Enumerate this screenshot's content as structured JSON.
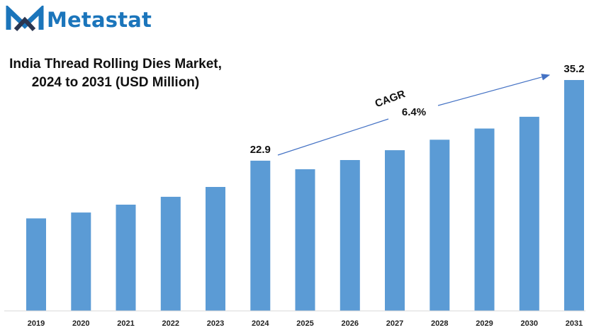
{
  "brand": {
    "name": "Metastat",
    "color": "#1b75bb",
    "logo_icon": "m-logo-icon"
  },
  "chart_data": {
    "type": "bar",
    "title_line1": "India Thread Rolling Dies Market,",
    "title_line2": "2024 to 2031 (USD Million)",
    "categories": [
      "2019",
      "2020",
      "2021",
      "2022",
      "2023",
      "2024",
      "2025",
      "2026",
      "2027",
      "2028",
      "2029",
      "2030",
      "2031"
    ],
    "values": [
      14.1,
      15.0,
      16.2,
      17.4,
      18.9,
      22.9,
      21.6,
      23.0,
      24.5,
      26.1,
      27.8,
      29.6,
      35.2
    ],
    "data_labels": [
      {
        "category": "2024",
        "text": "22.9"
      },
      {
        "category": "2031",
        "text": "35.2"
      }
    ],
    "annotation": {
      "label": "CAGR",
      "value": "6.4%"
    },
    "bar_color": "#5b9bd5",
    "ylim": [
      0,
      40
    ],
    "grid": false,
    "legend": "none"
  }
}
